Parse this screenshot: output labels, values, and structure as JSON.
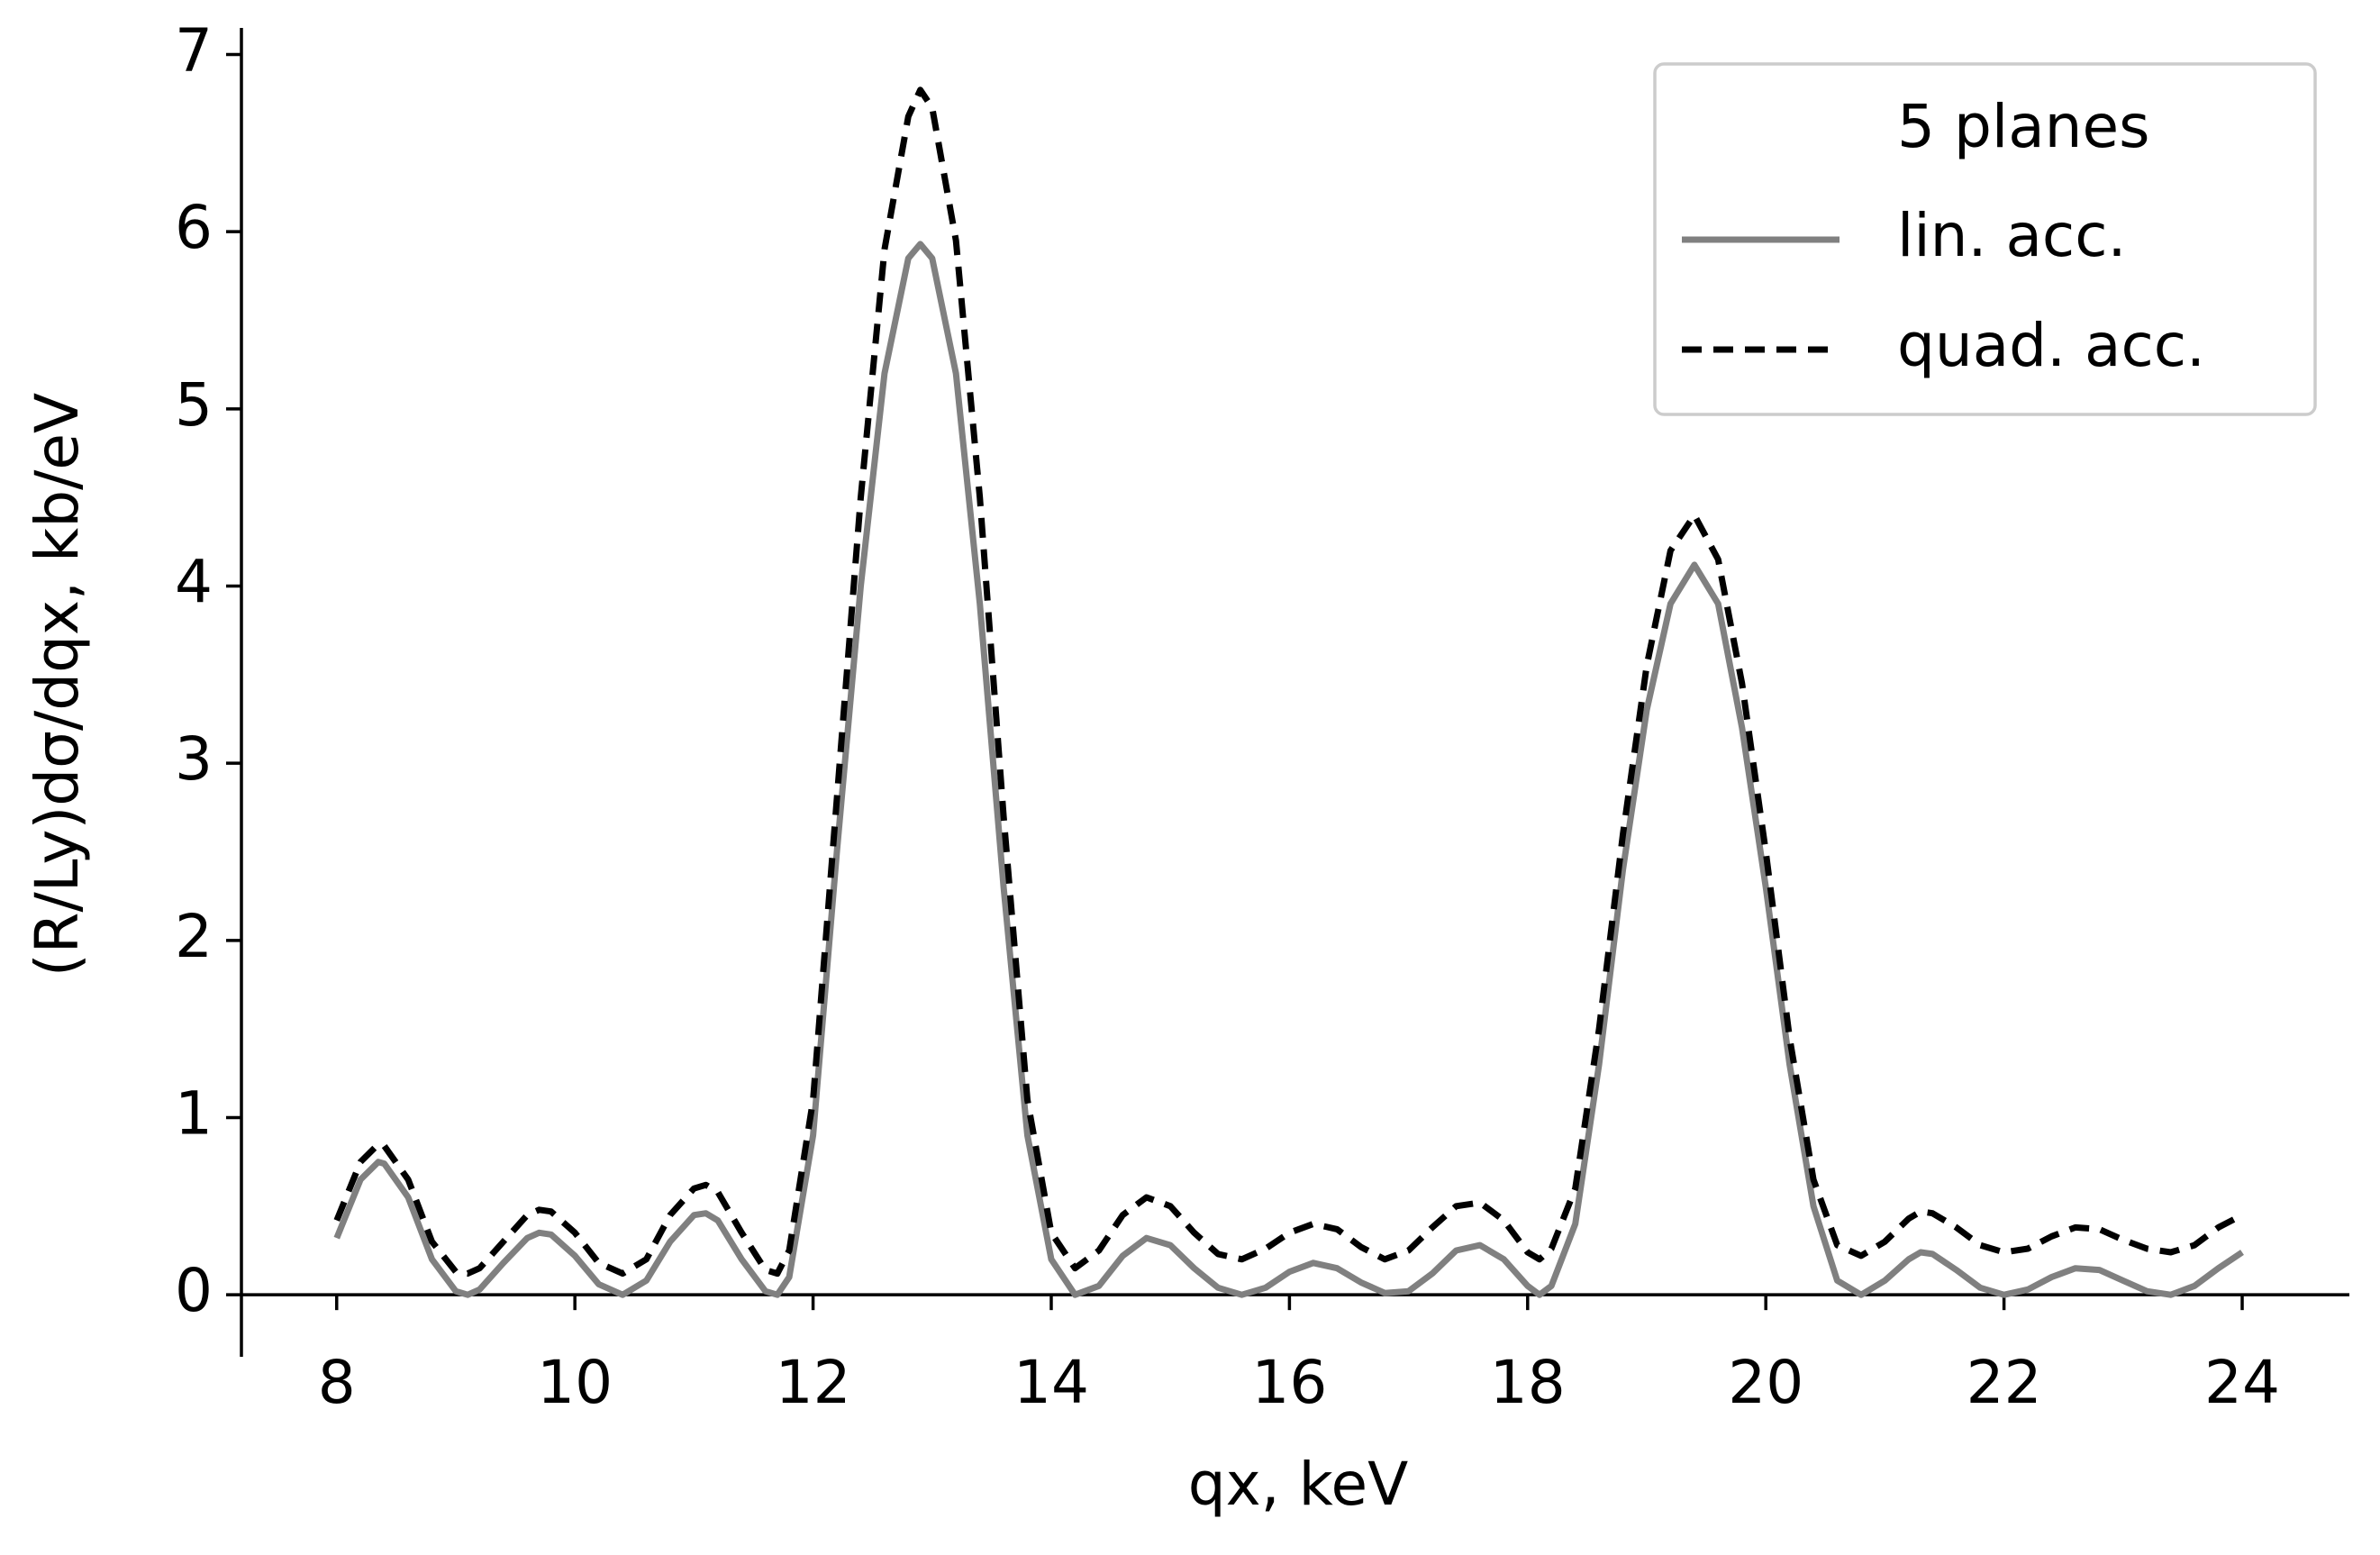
{
  "chart_data": {
    "type": "line",
    "x_label": "qx, keV",
    "y_label": "(R/Ly)dσ/dqx, kb/eV",
    "legend_title": "5 planes",
    "legend": "upper right",
    "xlim": [
      7.2,
      24.9
    ],
    "ylim": [
      -0.35,
      7.15
    ],
    "xticks": [
      8,
      10,
      12,
      14,
      16,
      18,
      20,
      22,
      24
    ],
    "yticks": [
      0,
      1,
      2,
      3,
      4,
      5,
      6,
      7
    ],
    "x": [
      8.0,
      8.2,
      8.35,
      8.4,
      8.6,
      8.8,
      9.0,
      9.1,
      9.2,
      9.4,
      9.6,
      9.7,
      9.8,
      10.0,
      10.2,
      10.4,
      10.6,
      10.8,
      11.0,
      11.1,
      11.2,
      11.4,
      11.6,
      11.7,
      11.8,
      12.0,
      12.2,
      12.4,
      12.6,
      12.8,
      12.9,
      13.0,
      13.2,
      13.4,
      13.6,
      13.8,
      14.0,
      14.2,
      14.4,
      14.6,
      14.8,
      15.0,
      15.2,
      15.4,
      15.6,
      15.8,
      16.0,
      16.2,
      16.4,
      16.6,
      16.8,
      17.0,
      17.2,
      17.4,
      17.6,
      17.8,
      18.0,
      18.1,
      18.2,
      18.4,
      18.6,
      18.8,
      19.0,
      19.2,
      19.4,
      19.6,
      19.8,
      20.0,
      20.2,
      20.4,
      20.6,
      20.8,
      21.0,
      21.2,
      21.3,
      21.4,
      21.6,
      21.8,
      22.0,
      22.2,
      22.4,
      22.6,
      22.8,
      23.0,
      23.2,
      23.4,
      23.6,
      23.8,
      24.0
    ],
    "series": [
      {
        "name": "lin. acc.",
        "color": "#808080",
        "dash": false,
        "values": [
          0.32,
          0.65,
          0.75,
          0.74,
          0.55,
          0.2,
          0.02,
          0.0,
          0.03,
          0.18,
          0.32,
          0.35,
          0.34,
          0.22,
          0.06,
          0.0,
          0.08,
          0.3,
          0.45,
          0.46,
          0.42,
          0.2,
          0.02,
          0.0,
          0.1,
          0.9,
          2.5,
          4.0,
          5.2,
          5.85,
          5.93,
          5.85,
          5.2,
          3.9,
          2.3,
          0.9,
          0.2,
          0.0,
          0.05,
          0.22,
          0.32,
          0.28,
          0.15,
          0.04,
          0.0,
          0.04,
          0.13,
          0.18,
          0.15,
          0.07,
          0.01,
          0.02,
          0.12,
          0.25,
          0.28,
          0.2,
          0.05,
          0.0,
          0.05,
          0.4,
          1.3,
          2.4,
          3.3,
          3.9,
          4.12,
          3.9,
          3.2,
          2.3,
          1.3,
          0.5,
          0.08,
          0.0,
          0.08,
          0.2,
          0.24,
          0.23,
          0.14,
          0.04,
          0.0,
          0.03,
          0.1,
          0.15,
          0.14,
          0.08,
          0.02,
          0.0,
          0.05,
          0.15,
          0.24
        ]
      },
      {
        "name": "quad. acc.",
        "color": "#000000",
        "dash": true,
        "values": [
          0.42,
          0.75,
          0.85,
          0.84,
          0.65,
          0.3,
          0.13,
          0.12,
          0.15,
          0.3,
          0.45,
          0.48,
          0.47,
          0.35,
          0.18,
          0.12,
          0.2,
          0.45,
          0.6,
          0.62,
          0.58,
          0.35,
          0.14,
          0.12,
          0.25,
          1.1,
          2.8,
          4.5,
          5.9,
          6.65,
          6.8,
          6.7,
          5.95,
          4.5,
          2.7,
          1.1,
          0.35,
          0.15,
          0.25,
          0.45,
          0.55,
          0.5,
          0.35,
          0.23,
          0.2,
          0.26,
          0.35,
          0.4,
          0.37,
          0.27,
          0.2,
          0.25,
          0.38,
          0.5,
          0.52,
          0.42,
          0.24,
          0.2,
          0.26,
          0.6,
          1.5,
          2.6,
          3.55,
          4.2,
          4.4,
          4.15,
          3.45,
          2.5,
          1.45,
          0.65,
          0.28,
          0.22,
          0.3,
          0.43,
          0.47,
          0.46,
          0.38,
          0.28,
          0.24,
          0.26,
          0.33,
          0.38,
          0.37,
          0.31,
          0.26,
          0.24,
          0.28,
          0.38,
          0.45
        ]
      }
    ]
  }
}
